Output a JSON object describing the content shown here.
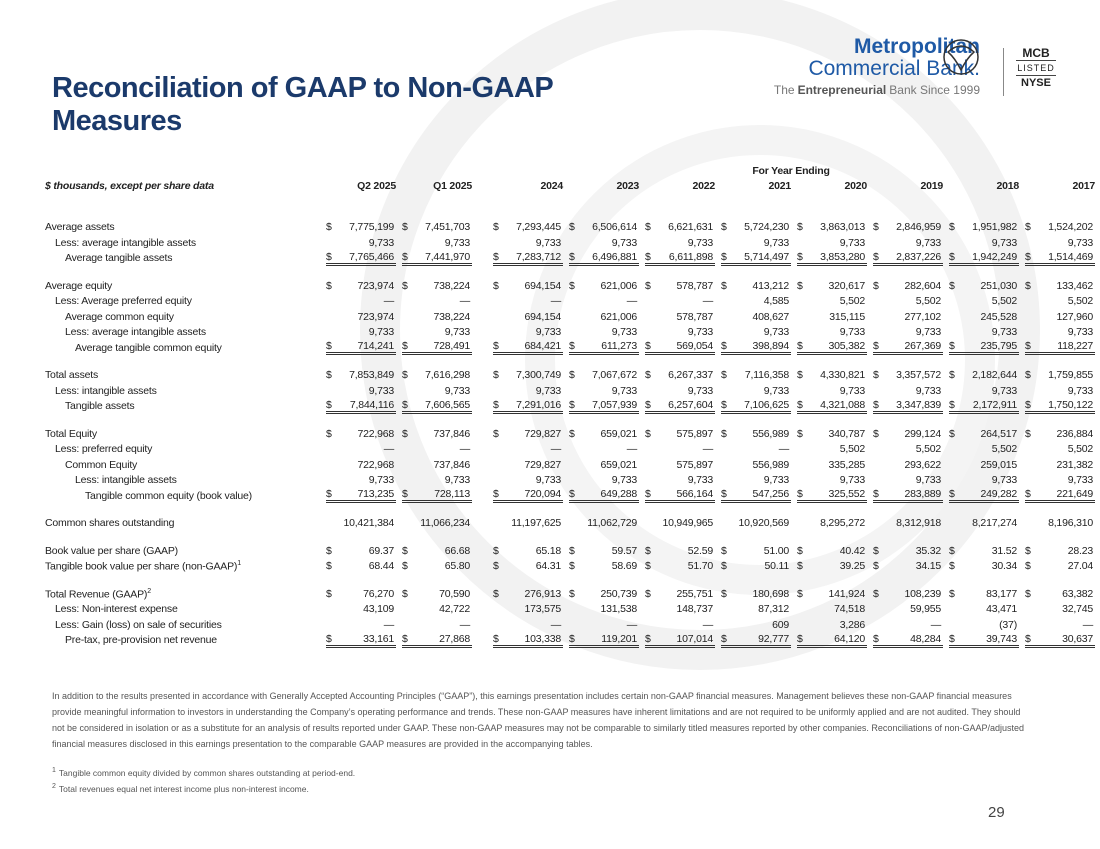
{
  "header": {
    "title": "Reconciliation of GAAP to Non-GAAP Measures",
    "logo": {
      "line1": "Metropolitan",
      "line2": "Commercial Bank.",
      "tagline": [
        "The",
        "Entrepreneurial",
        "Bank Since 1999"
      ]
    },
    "badge": [
      "MCB",
      "LISTED",
      "NYSE"
    ]
  },
  "table": {
    "units_label": "$ thousands, except per share data",
    "group_header": "For Year Ending",
    "currency": "$",
    "columns": [
      "Q2 2025",
      "Q1 2025",
      "2024",
      "2023",
      "2022",
      "2021",
      "2020",
      "2019",
      "2018",
      "2017"
    ],
    "sections": [
      {
        "rows": [
          {
            "label": "Average assets",
            "level": 0,
            "dollar": true,
            "cells": [
              "7,775,199",
              "7,451,703",
              "7,293,445",
              "6,506,614",
              "6,621,631",
              "5,724,230",
              "3,863,013",
              "2,846,959",
              "1,951,982",
              "1,524,202"
            ]
          },
          {
            "label": "Less: average intangible assets",
            "level": 1,
            "cells": [
              "9,733",
              "9,733",
              "9,733",
              "9,733",
              "9,733",
              "9,733",
              "9,733",
              "9,733",
              "9,733",
              "9,733"
            ]
          },
          {
            "label": "Average tangible assets",
            "level": 2,
            "dollar": true,
            "total": true,
            "cells": [
              "7,765,466",
              "7,441,970",
              "7,283,712",
              "6,496,881",
              "6,611,898",
              "5,714,497",
              "3,853,280",
              "2,837,226",
              "1,942,249",
              "1,514,469"
            ]
          }
        ]
      },
      {
        "rows": [
          {
            "label": "Average equity",
            "level": 0,
            "dollar": true,
            "cells": [
              "723,974",
              "738,224",
              "694,154",
              "621,006",
              "578,787",
              "413,212",
              "320,617",
              "282,604",
              "251,030",
              "133,462"
            ]
          },
          {
            "label": "Less: Average preferred equity",
            "level": 1,
            "cells": [
              "—",
              "—",
              "—",
              "—",
              "—",
              "4,585",
              "5,502",
              "5,502",
              "5,502",
              "5,502"
            ]
          },
          {
            "label": "Average common equity",
            "level": 2,
            "cells": [
              "723,974",
              "738,224",
              "694,154",
              "621,006",
              "578,787",
              "408,627",
              "315,115",
              "277,102",
              "245,528",
              "127,960"
            ]
          },
          {
            "label": "Less: average intangible assets",
            "level": 2,
            "cells": [
              "9,733",
              "9,733",
              "9,733",
              "9,733",
              "9,733",
              "9,733",
              "9,733",
              "9,733",
              "9,733",
              "9,733"
            ]
          },
          {
            "label": "Average tangible common equity",
            "level": 3,
            "dollar": true,
            "total": true,
            "cells": [
              "714,241",
              "728,491",
              "684,421",
              "611,273",
              "569,054",
              "398,894",
              "305,382",
              "267,369",
              "235,795",
              "118,227"
            ]
          }
        ]
      },
      {
        "rows": [
          {
            "label": "Total assets",
            "level": 0,
            "dollar": true,
            "cells": [
              "7,853,849",
              "7,616,298",
              "7,300,749",
              "7,067,672",
              "6,267,337",
              "7,116,358",
              "4,330,821",
              "3,357,572",
              "2,182,644",
              "1,759,855"
            ]
          },
          {
            "label": "Less: intangible assets",
            "level": 1,
            "cells": [
              "9,733",
              "9,733",
              "9,733",
              "9,733",
              "9,733",
              "9,733",
              "9,733",
              "9,733",
              "9,733",
              "9,733"
            ]
          },
          {
            "label": "Tangible assets",
            "level": 2,
            "dollar": true,
            "total": true,
            "cells": [
              "7,844,116",
              "7,606,565",
              "7,291,016",
              "7,057,939",
              "6,257,604",
              "7,106,625",
              "4,321,088",
              "3,347,839",
              "2,172,911",
              "1,750,122"
            ]
          }
        ]
      },
      {
        "rows": [
          {
            "label": "Total Equity",
            "level": 0,
            "dollar": true,
            "cells": [
              "722,968",
              "737,846",
              "729,827",
              "659,021",
              "575,897",
              "556,989",
              "340,787",
              "299,124",
              "264,517",
              "236,884"
            ]
          },
          {
            "label": "Less: preferred equity",
            "level": 1,
            "cells": [
              "—",
              "—",
              "—",
              "—",
              "—",
              "—",
              "5,502",
              "5,502",
              "5,502",
              "5,502"
            ]
          },
          {
            "label": "Common Equity",
            "level": 2,
            "cells": [
              "722,968",
              "737,846",
              "729,827",
              "659,021",
              "575,897",
              "556,989",
              "335,285",
              "293,622",
              "259,015",
              "231,382"
            ]
          },
          {
            "label": "Less: intangible assets",
            "level": 3,
            "cells": [
              "9,733",
              "9,733",
              "9,733",
              "9,733",
              "9,733",
              "9,733",
              "9,733",
              "9,733",
              "9,733",
              "9,733"
            ]
          },
          {
            "label": "Tangible common equity (book value)",
            "level": 4,
            "dollar": true,
            "total": true,
            "cells": [
              "713,235",
              "728,113",
              "720,094",
              "649,288",
              "566,164",
              "547,256",
              "325,552",
              "283,889",
              "249,282",
              "221,649"
            ]
          }
        ]
      },
      {
        "rows": [
          {
            "label": "Common shares outstanding",
            "level": 0,
            "cells": [
              "10,421,384",
              "11,066,234",
              "11,197,625",
              "11,062,729",
              "10,949,965",
              "10,920,569",
              "8,295,272",
              "8,312,918",
              "8,217,274",
              "8,196,310"
            ]
          }
        ]
      },
      {
        "rows": [
          {
            "label": "Book value per share (GAAP)",
            "level": 0,
            "dollar": true,
            "cells": [
              "69.37",
              "66.68",
              "65.18",
              "59.57",
              "52.59",
              "51.00",
              "40.42",
              "35.32",
              "31.52",
              "28.23"
            ]
          },
          {
            "label": "Tangible book value per share (non-GAAP)",
            "note": "1",
            "level": 0,
            "dollar": true,
            "cells": [
              "68.44",
              "65.80",
              "64.31",
              "58.69",
              "51.70",
              "50.11",
              "39.25",
              "34.15",
              "30.34",
              "27.04"
            ]
          }
        ]
      },
      {
        "rows": [
          {
            "label": "Total Revenue (GAAP)",
            "note": "2",
            "level": 0,
            "dollar": true,
            "cells": [
              "76,270",
              "70,590",
              "276,913",
              "250,739",
              "255,751",
              "180,698",
              "141,924",
              "108,239",
              "83,177",
              "63,382"
            ]
          },
          {
            "label": "Less: Non-interest expense",
            "level": 1,
            "cells": [
              "43,109",
              "42,722",
              "173,575",
              "131,538",
              "148,737",
              "87,312",
              "74,518",
              "59,955",
              "43,471",
              "32,745"
            ]
          },
          {
            "label": "Less: Gain (loss) on sale of securities",
            "level": 1,
            "cells": [
              "—",
              "—",
              "—",
              "—",
              "—",
              "609",
              "3,286",
              "—",
              "(37)",
              "—"
            ]
          },
          {
            "label": "Pre-tax, pre-provision net revenue",
            "level": 2,
            "dollar": true,
            "total": true,
            "cells": [
              "33,161",
              "27,868",
              "103,338",
              "119,201",
              "107,014",
              "92,777",
              "64,120",
              "48,284",
              "39,743",
              "30,637"
            ]
          }
        ]
      }
    ]
  },
  "disclaimer": "In addition to the results presented in accordance with Generally Accepted Accounting Principles (“GAAP”), this earnings presentation includes certain non-GAAP financial measures. Management believes these non-GAAP financial measures provide meaningful information to investors in understanding the Company’s operating performance and trends. These non-GAAP measures have inherent limitations and are not required to be uniformly applied and are not audited. They should not be considered in isolation or as a substitute for an analysis of results reported under GAAP. These non-GAAP measures may not be comparable to similarly titled measures reported by other companies. Reconciliations of non-GAAP/adjusted financial measures disclosed in this earnings presentation to the comparable GAAP measures are provided in the accompanying tables.",
  "footnotes": [
    {
      "mark": "1",
      "text": "Tangible common equity divided by common shares outstanding at period-end."
    },
    {
      "mark": "2",
      "text": "Total revenues equal net interest income plus non-interest income."
    }
  ],
  "page_number": "29"
}
